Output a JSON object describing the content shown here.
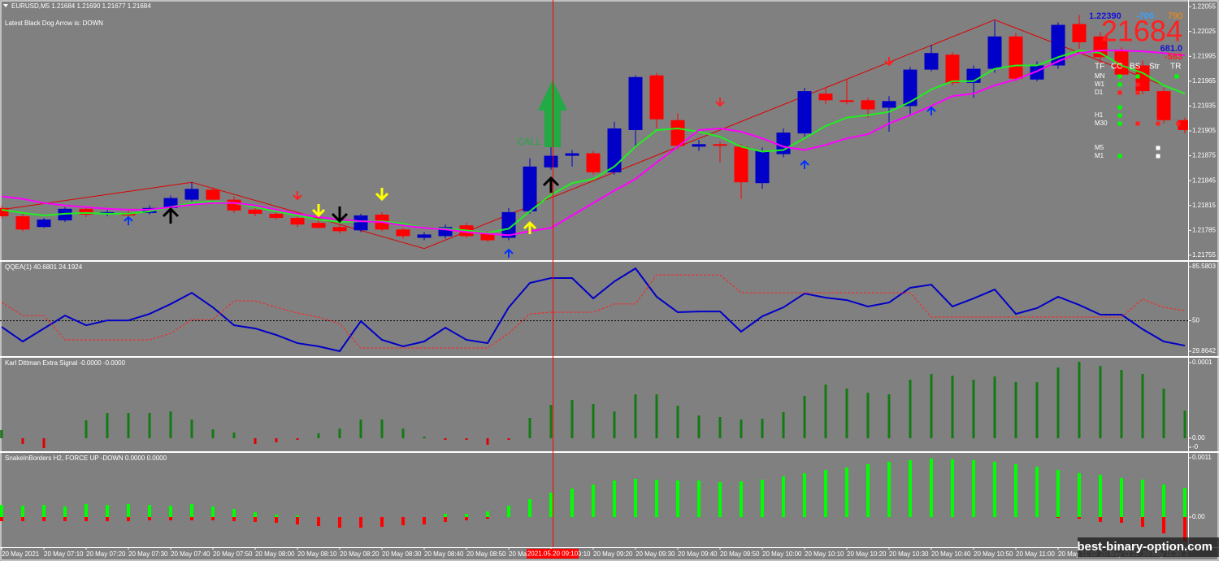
{
  "chart_data": [
    {
      "type": "candlestick",
      "title": "EURUSD,M5  1.21684 1.21690 1.21677 1.21684",
      "subtitle": "Latest Black Dog Arrow is:  DOWN",
      "annotations": [
        "CALL"
      ],
      "colors": {
        "up": "#0000c8",
        "down": "#ff0000"
      },
      "open": [
        1.21812,
        1.21802,
        1.21789,
        1.21797,
        1.21811,
        1.21805,
        1.21806,
        1.21806,
        1.21812,
        1.21822,
        1.21834,
        1.21822,
        1.2181,
        1.21805,
        1.218,
        1.21794,
        1.21789,
        1.21785,
        1.21804,
        1.21786,
        1.21776,
        1.21778,
        1.21791,
        1.21781,
        1.21776,
        1.21808,
        1.21861,
        1.21875,
        1.21878,
        1.21855,
        1.21906,
        1.21972,
        1.21918,
        1.21886,
        1.21889,
        1.21886,
        1.21842,
        1.21877,
        1.21902,
        1.2195,
        1.21942,
        1.21942,
        1.21933,
        1.21935,
        1.21979,
        1.21997,
        1.21963,
        1.2198,
        1.22019,
        1.21967,
        1.21984,
        1.22034,
        1.22019,
        1.22002,
        1.21984,
        1.21953,
        1.21918
      ],
      "high": [
        1.21815,
        1.21805,
        1.218,
        1.21813,
        1.21814,
        1.2181,
        1.21809,
        1.21815,
        1.21827,
        1.21843,
        1.21837,
        1.21826,
        1.21813,
        1.21807,
        1.21803,
        1.21797,
        1.21792,
        1.21805,
        1.21807,
        1.21788,
        1.21783,
        1.21792,
        1.21794,
        1.21784,
        1.21812,
        1.21872,
        1.21886,
        1.21882,
        1.21881,
        1.21916,
        1.21972,
        1.21975,
        1.21926,
        1.21894,
        1.21892,
        1.21889,
        1.21885,
        1.21908,
        1.21957,
        1.21957,
        1.21967,
        1.21945,
        1.21947,
        1.21982,
        1.22009,
        1.22,
        1.21984,
        1.22038,
        1.22023,
        1.21989,
        1.22036,
        1.22045,
        1.22024,
        1.22006,
        1.2199,
        1.21957,
        1.21921
      ],
      "low": [
        1.21799,
        1.21784,
        1.21788,
        1.21795,
        1.21801,
        1.21802,
        1.218,
        1.21804,
        1.2181,
        1.2182,
        1.21819,
        1.21806,
        1.21802,
        1.21798,
        1.21789,
        1.21787,
        1.21781,
        1.21783,
        1.21784,
        1.21775,
        1.21773,
        1.21775,
        1.21776,
        1.21771,
        1.21773,
        1.21805,
        1.21858,
        1.21862,
        1.21852,
        1.21852,
        1.21886,
        1.21908,
        1.21883,
        1.21881,
        1.21867,
        1.21823,
        1.21835,
        1.21873,
        1.21898,
        1.21937,
        1.21937,
        1.21921,
        1.21904,
        1.21924,
        1.21977,
        1.2196,
        1.21945,
        1.21975,
        1.21965,
        1.21965,
        1.2198,
        1.22004,
        1.21986,
        1.21967,
        1.21949,
        1.21914,
        1.21902
      ],
      "close": [
        1.21802,
        1.21786,
        1.21798,
        1.21811,
        1.21804,
        1.21807,
        1.21803,
        1.21812,
        1.21824,
        1.21835,
        1.21822,
        1.21809,
        1.21805,
        1.218,
        1.21792,
        1.21788,
        1.21784,
        1.21803,
        1.21786,
        1.21778,
        1.2178,
        1.21789,
        1.21778,
        1.21773,
        1.21807,
        1.21862,
        1.21875,
        1.21878,
        1.21855,
        1.21908,
        1.2197,
        1.21919,
        1.21887,
        1.21889,
        1.21887,
        1.21843,
        1.21881,
        1.21903,
        1.21953,
        1.21942,
        1.2194,
        1.21931,
        1.21941,
        1.21979,
        1.21999,
        1.21963,
        1.2198,
        1.22019,
        1.21968,
        1.21984,
        1.22033,
        1.22012,
        1.21994,
        1.21973,
        1.21953,
        1.21918,
        1.21906
      ],
      "lines": [
        {
          "color": "#22ee22",
          "values": [
            1.2181,
            1.21806,
            1.21803,
            1.21805,
            1.21806,
            1.21805,
            1.21805,
            1.21808,
            1.21813,
            1.21818,
            1.2182,
            1.21818,
            1.21813,
            1.21808,
            1.21803,
            1.21798,
            1.21795,
            1.21796,
            1.21796,
            1.21793,
            1.21788,
            1.21787,
            1.21785,
            1.21782,
            1.21787,
            1.21808,
            1.21828,
            1.21842,
            1.21847,
            1.21862,
            1.21886,
            1.21906,
            1.21908,
            1.21904,
            1.21898,
            1.21886,
            1.2188,
            1.21882,
            1.21896,
            1.21911,
            1.21921,
            1.21924,
            1.21928,
            1.2194,
            1.21955,
            1.21965,
            1.21965,
            1.2198,
            1.21984,
            1.21984,
            1.21994,
            1.22002,
            1.21999,
            1.21984,
            1.21975,
            1.2196,
            1.2195
          ]
        },
        {
          "color": "#ff00ff",
          "values": [
            1.21826,
            1.21823,
            1.21818,
            1.21815,
            1.21813,
            1.21811,
            1.2181,
            1.2181,
            1.21813,
            1.21816,
            1.21818,
            1.21818,
            1.21815,
            1.2181,
            1.21805,
            1.21801,
            1.21798,
            1.21796,
            1.21795,
            1.21791,
            1.21788,
            1.21786,
            1.21783,
            1.21781,
            1.21779,
            1.21784,
            1.21788,
            1.21803,
            1.21818,
            1.21833,
            1.21847,
            1.21867,
            1.21886,
            1.21906,
            1.21908,
            1.21904,
            1.21896,
            1.21886,
            1.21882,
            1.21888,
            1.21896,
            1.21901,
            1.21914,
            1.21924,
            1.21935,
            1.21947,
            1.2195,
            1.2196,
            1.21967,
            1.21977,
            1.21989,
            1.21999,
            1.22002,
            1.22002,
            1.22001,
            1.21999,
            1.21996
          ]
        }
      ],
      "zigzag": {
        "color": "#dd0000",
        "x": [
          0,
          9,
          20,
          47,
          56
        ],
        "values": [
          1.2181,
          1.21843,
          1.21763,
          1.22039,
          1.2195
        ]
      },
      "ylim": [
        1.21749,
        1.22063
      ],
      "yticks": [
        1.21755,
        1.21785,
        1.21815,
        1.21845,
        1.21875,
        1.21905,
        1.21935,
        1.21965,
        1.21995,
        1.22025,
        1.22055
      ],
      "dashboard": {
        "texts": [
          "1.22390",
          "-706",
          "790",
          "21684",
          "681.0",
          "-583"
        ],
        "columns": [
          "TF",
          "CC",
          "BS",
          "Str",
          "TR"
        ],
        "rows": [
          "MN",
          "W1",
          "D1",
          "H1",
          "M30",
          "M5",
          "M1"
        ]
      }
    },
    {
      "type": "line",
      "title": "QQEA(1) 40.6801 24.1924",
      "series": [
        {
          "color": "#0000c8",
          "values": [
            45.9,
            36.3,
            44.9,
            53.4,
            47.0,
            50.2,
            50.2,
            54.5,
            61.0,
            68.4,
            58.8,
            47.0,
            44.9,
            40.6,
            35.2,
            33.1,
            29.9,
            49.7,
            37.4,
            33.1,
            36.3,
            45.4,
            37.4,
            35.2,
            58.8,
            74.9,
            78.1,
            78.1,
            64.7,
            75.9,
            84.5,
            65.8,
            55.6,
            56.1,
            56.1,
            42.8,
            52.9,
            58.8,
            67.9,
            65.2,
            63.6,
            59.4,
            62.0,
            71.7,
            73.8,
            59.4,
            64.7,
            70.6,
            54.5,
            58.3,
            65.8,
            60.4,
            54.0,
            54.0,
            44.4,
            36.3,
            33.6
          ]
        },
        {
          "color": "#ff2020",
          "dash": true,
          "values": [
            62.0,
            53.4,
            53.4,
            37.4,
            37.4,
            37.4,
            37.4,
            37.4,
            41.7,
            50.8,
            50.8,
            63.1,
            63.1,
            58.8,
            55.1,
            52.4,
            48.1,
            32.0,
            32.0,
            32.0,
            32.0,
            32.0,
            32.0,
            32.0,
            41.7,
            54.5,
            55.6,
            55.6,
            55.6,
            61.0,
            61.0,
            80.2,
            80.2,
            80.2,
            80.2,
            68.4,
            68.4,
            68.4,
            68.4,
            68.4,
            68.4,
            68.4,
            68.4,
            68.4,
            52.4,
            52.4,
            52.4,
            52.4,
            52.4,
            52.4,
            52.4,
            52.4,
            52.4,
            52.4,
            64.2,
            58.8,
            56.7
          ]
        }
      ],
      "levels": [
        50
      ],
      "ylim": [
        27.2,
        88.3
      ],
      "yticks": [
        85.5803,
        50,
        29.8642
      ]
    },
    {
      "type": "bar",
      "title": "Karl Dittman Extra Signal -0.0000 -0.0000",
      "colors": {
        "up": "#137a13",
        "down": "#e00000"
      },
      "values": [
        1.08e-05,
        -7.5e-06,
        -1.29e-05,
        0,
        2.37e-05,
        3.33e-05,
        3.33e-05,
        3.33e-05,
        3.55e-05,
        2.47e-05,
        1.18e-05,
        7.5e-06,
        -7.5e-06,
        -5.4e-06,
        -2.2e-06,
        6.5e-06,
        1.29e-05,
        2.47e-05,
        2.47e-05,
        1.29e-05,
        2.2e-06,
        -2.2e-06,
        -2.2e-06,
        -8.6e-06,
        -2.2e-06,
        2.69e-05,
        4.41e-05,
        5.05e-05,
        4.52e-05,
        3.55e-05,
        5.81e-05,
        5.81e-05,
        4.3e-05,
        3.01e-05,
        2.8e-05,
        2.47e-05,
        2.58e-05,
        3.44e-05,
        5.59e-05,
        7.1e-05,
        6.56e-05,
        6.02e-05,
        5.81e-05,
        7.74e-05,
        8.49e-05,
        8.28e-05,
        7.74e-05,
        8.17e-05,
        7.42e-05,
        7.42e-05,
        9.35e-05,
        0.0001011,
        9.57e-05,
        9.03e-05,
        8.49e-05,
        6.56e-05,
        3.66e-05
      ],
      "ylim": [
        -1.72e-05,
        0.0001054
      ],
      "yticks": [
        0.0001,
        {
          "value": 0,
          "label": "0.00"
        },
        {
          "value": -1.18e-05,
          "label": "-0"
        }
      ]
    },
    {
      "type": "bar",
      "title": "SnakeInBorders H2, FORCE UP -DOWN  0.0000 0.0000",
      "series": [
        {
          "color": "#00ff00",
          "values": [
            0.000226,
            0.000211,
            0.000226,
            0.000196,
            0.000241,
            0.000226,
            0.000241,
            0.000226,
            0.000211,
            0.000241,
            0.000196,
            0.000151,
            9e-05,
            4.5e-05,
            3e-05,
            0,
            0,
            0,
            0,
            0,
            0,
            6e-05,
            6e-05,
            0.000105,
            0.000211,
            0.000332,
            0.000452,
            0.000527,
            0.000603,
            0.000678,
            0.000708,
            0.000693,
            0.000678,
            0.000678,
            0.000648,
            0.000663,
            0.000693,
            0.000754,
            0.000814,
            0.000874,
            0.000919,
            0.00098,
            0.001025,
            0.001055,
            0.001085,
            0.00107,
            0.001055,
            0.001025,
            0.00098,
            0.000934,
            0.000874,
            0.000814,
            0.000784,
            0.000723,
            0.000693,
            0.000603,
            0.000543
          ]
        },
        {
          "color": "#ff0000",
          "values": [
            -7.5e-05,
            -7.5e-05,
            -7.5e-05,
            -7.5e-05,
            -7.5e-05,
            -7.5e-05,
            -7.5e-05,
            -6e-05,
            -6e-05,
            -6e-05,
            -6e-05,
            -7.5e-05,
            -9e-05,
            -0.000105,
            -0.000136,
            -0.000166,
            -0.000196,
            -0.000196,
            -0.000181,
            -0.000151,
            -0.000136,
            -9e-05,
            -6e-05,
            -3e-05,
            0,
            0,
            0,
            0,
            0,
            0,
            0,
            0,
            0,
            0,
            0,
            0,
            0,
            0,
            0,
            0,
            0,
            0,
            0,
            0,
            0,
            0,
            0,
            0,
            0,
            0,
            -1.5e-05,
            -3e-05,
            -9e-05,
            -0.000105,
            -0.000181,
            -0.000302,
            -0.000452
          ]
        }
      ],
      "ylim": [
        -0.000542,
        0.00119
      ],
      "yticks": [
        0.0011,
        {
          "value": 0,
          "label": "0.00"
        }
      ],
      "categories": [
        "20 May 2021",
        null,
        "20 May 07:10",
        null,
        "20 May 07:20",
        null,
        "20 May 07:30",
        null,
        "20 May 07:40",
        null,
        "20 May 07:50",
        null,
        "20 May 08:00",
        null,
        "20 May 08:10",
        null,
        "20 May 08:20",
        null,
        "20 May 08:30",
        null,
        "20 May 08:40",
        null,
        "20 May 08:50",
        null,
        "20 May 09:00",
        null,
        "20 May 09:10",
        null,
        "20 May 09:20",
        null,
        "20 May 09:30",
        null,
        "20 May 09:40",
        null,
        "20 May 09:50",
        null,
        "20 May 10:00",
        null,
        "20 May 10:10",
        null,
        "20 May 10:20",
        null,
        "20 May 10:30",
        null,
        "20 May 10:40",
        null,
        "20 May 10:50",
        null,
        "20 May 11:00",
        null,
        "20 May 11:10",
        null,
        "20 May 11:20",
        null,
        "20 May 11:30",
        null,
        "20 May 11:40"
      ]
    }
  ],
  "cursor_label": "2021.05.20 09:10",
  "watermark": "best-binary-option.com"
}
